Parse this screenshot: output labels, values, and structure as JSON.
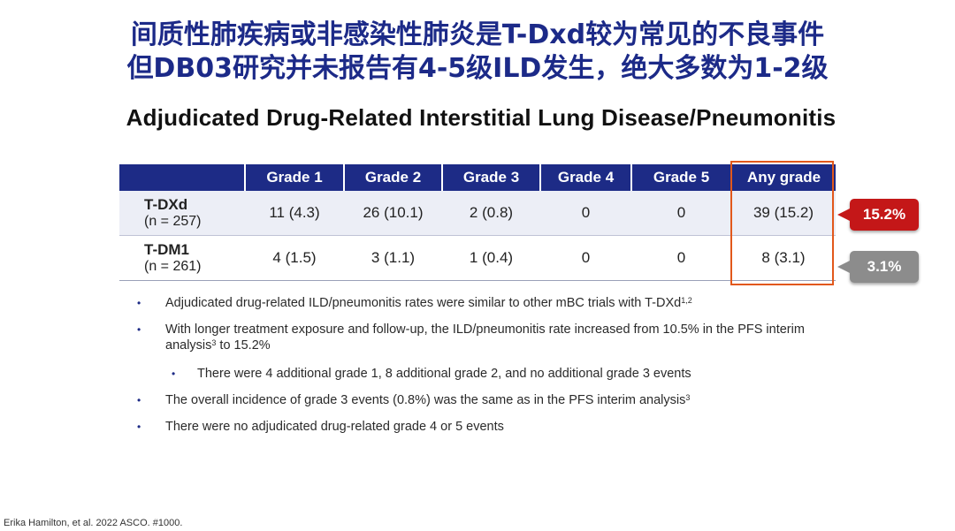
{
  "title": {
    "line1": "间质性肺疾病或非感染性肺炎是T-Dxd较为常见的不良事件",
    "line2": "但DB03研究并未报告有4-5级ILD发生，绝大多数为1-2级"
  },
  "subtitle": "Adjudicated Drug-Related Interstitial Lung Disease/Pneumonitis",
  "table": {
    "headers": [
      "",
      "Grade 1",
      "Grade 2",
      "Grade 3",
      "Grade 4",
      "Grade 5",
      "Any grade"
    ],
    "rows": [
      {
        "arm": "T-DXd",
        "n": "(n = 257)",
        "cells": [
          "11 (4.3)",
          "26 (10.1)",
          "2 (0.8)",
          "0",
          "0",
          "39 (15.2)"
        ]
      },
      {
        "arm": "T-DM1",
        "n": "(n = 261)",
        "cells": [
          "4 (1.5)",
          "3 (1.1)",
          "1 (0.4)",
          "0",
          "0",
          "8 (3.1)"
        ]
      }
    ]
  },
  "badges": {
    "tdxd": "15.2%",
    "tdm1": "3.1%",
    "red_color": "#c41718",
    "gray_color": "#8c8c8c",
    "highlight_color": "#e2581b"
  },
  "bullets": [
    {
      "text": "Adjudicated drug-related ILD/pneumonitis rates were similar to other mBC trials with T-DXd",
      "sup": "1,2"
    },
    {
      "text": "With longer treatment exposure and follow-up, the ILD/pneumonitis rate increased from 10.5% in the PFS interim analysis",
      "sup": "3",
      "tail": " to 15.2%"
    },
    {
      "text": "There were 4 additional grade 1, 8 additional grade 2, and no additional grade 3 events"
    },
    {
      "text": "The overall incidence of grade 3 events (0.8%) was the same as in the PFS interim analysis",
      "sup": "3"
    },
    {
      "text": "There were no adjudicated drug-related grade 4 or 5 events"
    }
  ],
  "bullet_glyph": "•",
  "footnote": "Erika Hamilton, et al. 2022 ASCO. #1000."
}
